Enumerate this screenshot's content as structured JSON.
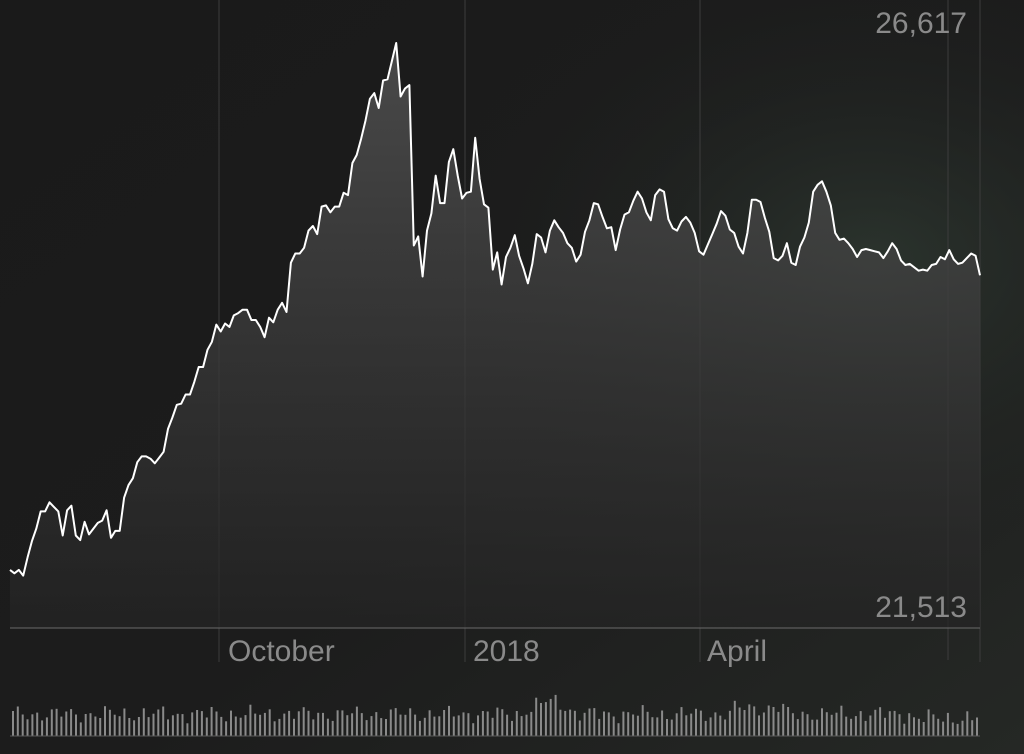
{
  "chart_data": {
    "type": "area",
    "y_max_label": "26,617",
    "y_min_label": "21,513",
    "ylim": [
      21513,
      26617
    ],
    "x_labels": [
      "October",
      "2018",
      "April"
    ],
    "grid": "vertical lines at month boundaries",
    "series": [
      {
        "values": [
          22020,
          21990,
          22020,
          21970,
          22130,
          22270,
          22380,
          22530,
          22530,
          22610,
          22570,
          22530,
          22320,
          22540,
          22580,
          22320,
          22280,
          22440,
          22330,
          22380,
          22430,
          22450,
          22540,
          22300,
          22360,
          22360,
          22650,
          22760,
          22820,
          22960,
          23010,
          23010,
          22990,
          22950,
          23000,
          23050,
          23250,
          23350,
          23460,
          23470,
          23550,
          23550,
          23660,
          23790,
          23790,
          23940,
          24010,
          24160,
          24100,
          24170,
          24140,
          24240,
          24260,
          24290,
          24290,
          24200,
          24200,
          24140,
          24050,
          24220,
          24180,
          24290,
          24350,
          24270,
          24700,
          24780,
          24780,
          24830,
          24980,
          25020,
          24950,
          25190,
          25200,
          25140,
          25190,
          25190,
          25310,
          25290,
          25570,
          25640,
          25780,
          25940,
          26130,
          26180,
          26050,
          26290,
          26300,
          26460,
          26617,
          26150,
          26220,
          26250,
          24850,
          24930,
          24580,
          24980,
          25130,
          25460,
          25220,
          25220,
          25580,
          25690,
          25460,
          25260,
          25310,
          25320,
          25790,
          25430,
          25210,
          25180,
          24640,
          24790,
          24510,
          24750,
          24830,
          24940,
          24760,
          24650,
          24520,
          24690,
          24950,
          24920,
          24790,
          24980,
          25070,
          25010,
          24960,
          24870,
          24830,
          24710,
          24770,
          24970,
          25070,
          25220,
          25210,
          25100,
          25000,
          25010,
          24810,
          24990,
          25120,
          25140,
          25240,
          25320,
          25260,
          25140,
          25070,
          25290,
          25340,
          25320,
          25080,
          25000,
          24980,
          25060,
          25100,
          25050,
          24960,
          24800,
          24770,
          24860,
          24950,
          25040,
          25150,
          25110,
          24990,
          24960,
          24840,
          24780,
          24960,
          25250,
          25250,
          25230,
          25090,
          24970,
          24740,
          24720,
          24760,
          24870,
          24700,
          24680,
          24840,
          24920,
          25050,
          25320,
          25380,
          25410,
          25320,
          25200,
          24960,
          24900,
          24910,
          24870,
          24820,
          24750,
          24810,
          24820,
          24810,
          24800,
          24790,
          24740,
          24800,
          24870,
          24820,
          24720,
          24680,
          24690,
          24660,
          24630,
          24640,
          24630,
          24680,
          24690,
          24750,
          24730,
          24810,
          24730,
          24690,
          24700,
          24740,
          24780,
          24760,
          24590
        ]
      }
    ]
  }
}
